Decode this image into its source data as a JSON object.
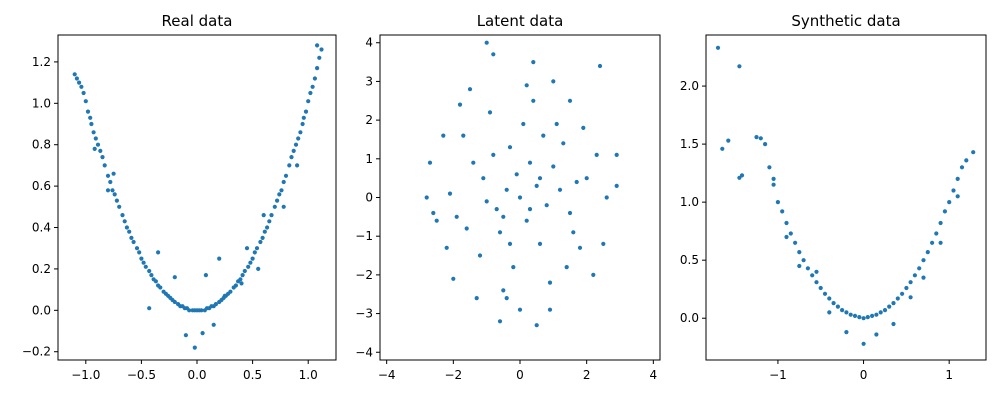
{
  "chart_data": [
    {
      "type": "scatter",
      "title": "Real data",
      "color": "#1f77b4",
      "xlim": [
        -1.25,
        1.25
      ],
      "ylim": [
        -0.24,
        1.33
      ],
      "xticks": [
        -1.0,
        -0.5,
        0.0,
        0.5,
        1.0
      ],
      "xtick_labels": [
        "−1.0",
        "−0.5",
        "0.0",
        "0.5",
        "1.0"
      ],
      "yticks": [
        -0.2,
        0.0,
        0.2,
        0.4,
        0.6,
        0.8,
        1.0,
        1.2
      ],
      "ytick_labels": [
        "−0.2",
        "0.0",
        "0.2",
        "0.4",
        "0.6",
        "0.8",
        "1.0",
        "1.2"
      ],
      "points": [
        [
          -1.1,
          1.14
        ],
        [
          -1.08,
          1.12
        ],
        [
          -1.06,
          1.1
        ],
        [
          -1.04,
          1.08
        ],
        [
          -1.02,
          1.05
        ],
        [
          -1.0,
          1.01
        ],
        [
          -0.98,
          0.96
        ],
        [
          -0.96,
          0.93
        ],
        [
          -0.95,
          0.9
        ],
        [
          -0.93,
          0.86
        ],
        [
          -0.91,
          0.83
        ],
        [
          -0.89,
          0.8
        ],
        [
          -0.87,
          0.77
        ],
        [
          -0.85,
          0.74
        ],
        [
          -0.83,
          0.7
        ],
        [
          -0.8,
          0.65
        ],
        [
          -0.78,
          0.62
        ],
        [
          -0.76,
          0.58
        ],
        [
          -0.74,
          0.56
        ],
        [
          -0.72,
          0.53
        ],
        [
          -0.7,
          0.5
        ],
        [
          -0.67,
          0.46
        ],
        [
          -0.65,
          0.43
        ],
        [
          -0.63,
          0.4
        ],
        [
          -0.61,
          0.38
        ],
        [
          -0.59,
          0.35
        ],
        [
          -0.57,
          0.33
        ],
        [
          -0.54,
          0.3
        ],
        [
          -0.52,
          0.28
        ],
        [
          -0.5,
          0.25
        ],
        [
          -0.48,
          0.23
        ],
        [
          -0.46,
          0.21
        ],
        [
          -0.43,
          0.19
        ],
        [
          -0.41,
          0.17
        ],
        [
          -0.39,
          0.15
        ],
        [
          -0.37,
          0.14
        ],
        [
          -0.35,
          0.12
        ],
        [
          -0.33,
          0.11
        ],
        [
          -0.3,
          0.09
        ],
        [
          -0.28,
          0.08
        ],
        [
          -0.26,
          0.07
        ],
        [
          -0.24,
          0.06
        ],
        [
          -0.22,
          0.05
        ],
        [
          -0.2,
          0.04
        ],
        [
          -0.17,
          0.03
        ],
        [
          -0.15,
          0.02
        ],
        [
          -0.13,
          0.02
        ],
        [
          -0.11,
          0.01
        ],
        [
          -0.09,
          0.01
        ],
        [
          -0.07,
          0.0
        ],
        [
          -0.04,
          0.0
        ],
        [
          -0.02,
          0.0
        ],
        [
          0.0,
          0.0
        ],
        [
          0.02,
          0.0
        ],
        [
          0.04,
          0.0
        ],
        [
          0.07,
          0.0
        ],
        [
          0.09,
          0.01
        ],
        [
          0.11,
          0.01
        ],
        [
          0.13,
          0.02
        ],
        [
          0.15,
          0.02
        ],
        [
          0.17,
          0.03
        ],
        [
          0.2,
          0.04
        ],
        [
          0.22,
          0.05
        ],
        [
          0.24,
          0.06
        ],
        [
          0.26,
          0.07
        ],
        [
          0.28,
          0.08
        ],
        [
          0.3,
          0.09
        ],
        [
          0.33,
          0.11
        ],
        [
          0.35,
          0.12
        ],
        [
          0.37,
          0.14
        ],
        [
          0.39,
          0.15
        ],
        [
          0.41,
          0.17
        ],
        [
          0.43,
          0.19
        ],
        [
          0.46,
          0.21
        ],
        [
          0.48,
          0.23
        ],
        [
          0.5,
          0.25
        ],
        [
          0.52,
          0.28
        ],
        [
          0.54,
          0.3
        ],
        [
          0.57,
          0.33
        ],
        [
          0.59,
          0.35
        ],
        [
          0.61,
          0.38
        ],
        [
          0.63,
          0.4
        ],
        [
          0.65,
          0.43
        ],
        [
          0.67,
          0.46
        ],
        [
          0.7,
          0.5
        ],
        [
          0.72,
          0.53
        ],
        [
          0.74,
          0.56
        ],
        [
          0.76,
          0.58
        ],
        [
          0.78,
          0.62
        ],
        [
          0.8,
          0.65
        ],
        [
          0.83,
          0.7
        ],
        [
          0.85,
          0.74
        ],
        [
          0.87,
          0.77
        ],
        [
          0.89,
          0.8
        ],
        [
          0.91,
          0.83
        ],
        [
          0.93,
          0.86
        ],
        [
          0.95,
          0.9
        ],
        [
          0.96,
          0.93
        ],
        [
          0.98,
          0.96
        ],
        [
          1.0,
          1.01
        ],
        [
          1.02,
          1.05
        ],
        [
          1.04,
          1.08
        ],
        [
          1.06,
          1.12
        ],
        [
          1.08,
          1.17
        ],
        [
          1.1,
          1.22
        ],
        [
          1.12,
          1.26
        ],
        [
          -0.02,
          -0.18
        ],
        [
          -0.1,
          -0.12
        ],
        [
          0.05,
          -0.11
        ],
        [
          0.15,
          -0.07
        ],
        [
          -0.2,
          0.16
        ],
        [
          0.08,
          0.17
        ],
        [
          -0.35,
          0.28
        ],
        [
          -0.43,
          0.01
        ],
        [
          0.25,
          0.07
        ],
        [
          0.4,
          0.13
        ],
        [
          0.2,
          0.25
        ],
        [
          -0.8,
          0.58
        ],
        [
          -0.75,
          0.66
        ],
        [
          -0.92,
          0.78
        ],
        [
          1.08,
          1.28
        ],
        [
          0.9,
          0.7
        ],
        [
          0.78,
          0.5
        ],
        [
          0.6,
          0.46
        ],
        [
          0.55,
          0.2
        ],
        [
          0.45,
          0.3
        ]
      ]
    },
    {
      "type": "scatter",
      "title": "Latent data",
      "color": "#1f77b4",
      "xlim": [
        -4.2,
        4.2
      ],
      "ylim": [
        -4.2,
        4.2
      ],
      "xticks": [
        -4,
        -2,
        0,
        2,
        4
      ],
      "xtick_labels": [
        "−4",
        "−2",
        "0",
        "2",
        "4"
      ],
      "yticks": [
        -4,
        -3,
        -2,
        -1,
        0,
        1,
        2,
        3,
        4
      ],
      "ytick_labels": [
        "−4",
        "−3",
        "−2",
        "−1",
        "0",
        "1",
        "2",
        "3",
        "4"
      ],
      "points": [
        [
          0.0,
          0.0
        ],
        [
          0.5,
          0.3
        ],
        [
          -0.4,
          0.2
        ],
        [
          0.2,
          -0.6
        ],
        [
          -0.7,
          -0.3
        ],
        [
          1.0,
          0.8
        ],
        [
          -1.1,
          0.5
        ],
        [
          0.6,
          -1.2
        ],
        [
          -0.3,
          1.3
        ],
        [
          1.5,
          -0.4
        ],
        [
          -1.6,
          -0.8
        ],
        [
          0.1,
          1.9
        ],
        [
          -0.2,
          -1.8
        ],
        [
          2.0,
          0.5
        ],
        [
          -2.1,
          0.1
        ],
        [
          1.3,
          1.4
        ],
        [
          -1.2,
          -1.5
        ],
        [
          1.8,
          -1.3
        ],
        [
          -1.7,
          1.6
        ],
        [
          0.4,
          2.5
        ],
        [
          -0.5,
          -2.4
        ],
        [
          2.6,
          0.0
        ],
        [
          -2.5,
          -0.6
        ],
        [
          0.9,
          -2.2
        ],
        [
          -0.9,
          2.2
        ],
        [
          2.3,
          1.1
        ],
        [
          -2.2,
          -1.3
        ],
        [
          0.3,
          0.9
        ],
        [
          -0.6,
          -0.9
        ],
        [
          0.8,
          -0.2
        ],
        [
          -1.0,
          -0.1
        ],
        [
          1.2,
          0.2
        ],
        [
          -1.4,
          0.9
        ],
        [
          0.7,
          1.6
        ],
        [
          -0.3,
          -1.2
        ],
        [
          1.6,
          -0.9
        ],
        [
          -1.9,
          -0.5
        ],
        [
          0.0,
          -2.9
        ],
        [
          -1.0,
          4.0
        ],
        [
          -0.8,
          3.7
        ],
        [
          0.4,
          3.5
        ],
        [
          2.4,
          3.4
        ],
        [
          -0.6,
          -3.2
        ],
        [
          0.5,
          -3.3
        ],
        [
          2.9,
          1.1
        ],
        [
          2.9,
          0.3
        ],
        [
          -2.7,
          0.9
        ],
        [
          -2.6,
          -0.4
        ],
        [
          1.0,
          3.0
        ],
        [
          -1.8,
          2.4
        ],
        [
          1.5,
          2.5
        ],
        [
          2.2,
          -2.0
        ],
        [
          -2.0,
          -2.1
        ],
        [
          1.9,
          1.8
        ],
        [
          -1.5,
          2.8
        ],
        [
          0.9,
          -2.9
        ],
        [
          -2.3,
          1.6
        ],
        [
          2.5,
          -1.2
        ],
        [
          -2.8,
          0.0
        ],
        [
          0.2,
          2.9
        ],
        [
          -0.4,
          -2.6
        ],
        [
          1.7,
          0.4
        ],
        [
          -1.3,
          -2.6
        ],
        [
          1.1,
          1.9
        ],
        [
          -0.8,
          1.1
        ],
        [
          0.6,
          0.5
        ],
        [
          -0.1,
          0.6
        ],
        [
          0.3,
          -0.3
        ],
        [
          -0.5,
          -0.5
        ],
        [
          1.4,
          -1.8
        ]
      ]
    },
    {
      "type": "scatter",
      "title": "Synthetic data",
      "color": "#1f77b4",
      "xlim": [
        -1.84,
        1.43
      ],
      "ylim": [
        -0.36,
        2.44
      ],
      "xticks": [
        -1,
        0,
        1
      ],
      "xtick_labels": [
        "−1",
        "0",
        "1"
      ],
      "yticks": [
        0.0,
        0.5,
        1.0,
        1.5,
        2.0
      ],
      "ytick_labels": [
        "0.0",
        "0.5",
        "1.0",
        "1.5",
        "2.0"
      ],
      "points": [
        [
          -1.7,
          2.33
        ],
        [
          -1.45,
          2.17
        ],
        [
          -1.65,
          1.46
        ],
        [
          -1.58,
          1.53
        ],
        [
          -1.45,
          1.21
        ],
        [
          -1.42,
          1.23
        ],
        [
          -1.25,
          1.56
        ],
        [
          -1.2,
          1.55
        ],
        [
          -1.15,
          1.5
        ],
        [
          -1.1,
          1.3
        ],
        [
          -1.05,
          1.15
        ],
        [
          -1.0,
          1.0
        ],
        [
          -0.95,
          0.92
        ],
        [
          -0.9,
          0.82
        ],
        [
          -0.85,
          0.73
        ],
        [
          -0.8,
          0.65
        ],
        [
          -0.75,
          0.57
        ],
        [
          -0.7,
          0.5
        ],
        [
          -0.65,
          0.43
        ],
        [
          -0.6,
          0.37
        ],
        [
          -0.55,
          0.31
        ],
        [
          -0.5,
          0.26
        ],
        [
          -0.45,
          0.21
        ],
        [
          -0.4,
          0.17
        ],
        [
          -0.35,
          0.13
        ],
        [
          -0.3,
          0.1
        ],
        [
          -0.25,
          0.07
        ],
        [
          -0.2,
          0.05
        ],
        [
          -0.15,
          0.03
        ],
        [
          -0.1,
          0.02
        ],
        [
          -0.05,
          0.01
        ],
        [
          0.0,
          0.0
        ],
        [
          0.05,
          0.01
        ],
        [
          0.1,
          0.02
        ],
        [
          0.15,
          0.03
        ],
        [
          0.2,
          0.05
        ],
        [
          0.25,
          0.07
        ],
        [
          0.3,
          0.1
        ],
        [
          0.35,
          0.13
        ],
        [
          0.4,
          0.17
        ],
        [
          0.45,
          0.21
        ],
        [
          0.5,
          0.26
        ],
        [
          0.55,
          0.31
        ],
        [
          0.6,
          0.37
        ],
        [
          0.65,
          0.43
        ],
        [
          0.7,
          0.5
        ],
        [
          0.75,
          0.57
        ],
        [
          0.8,
          0.65
        ],
        [
          0.85,
          0.73
        ],
        [
          0.9,
          0.82
        ],
        [
          0.95,
          0.92
        ],
        [
          1.0,
          1.0
        ],
        [
          1.05,
          1.1
        ],
        [
          1.1,
          1.2
        ],
        [
          1.15,
          1.3
        ],
        [
          1.2,
          1.36
        ],
        [
          1.28,
          1.43
        ],
        [
          0.0,
          -0.22
        ],
        [
          -0.2,
          -0.12
        ],
        [
          0.15,
          -0.14
        ],
        [
          0.35,
          -0.05
        ],
        [
          -0.4,
          0.05
        ],
        [
          -0.9,
          0.7
        ],
        [
          -0.75,
          0.45
        ],
        [
          0.7,
          0.35
        ],
        [
          0.9,
          0.65
        ],
        [
          1.1,
          1.05
        ],
        [
          -1.05,
          1.2
        ],
        [
          -0.55,
          0.4
        ],
        [
          0.55,
          0.18
        ]
      ]
    }
  ]
}
